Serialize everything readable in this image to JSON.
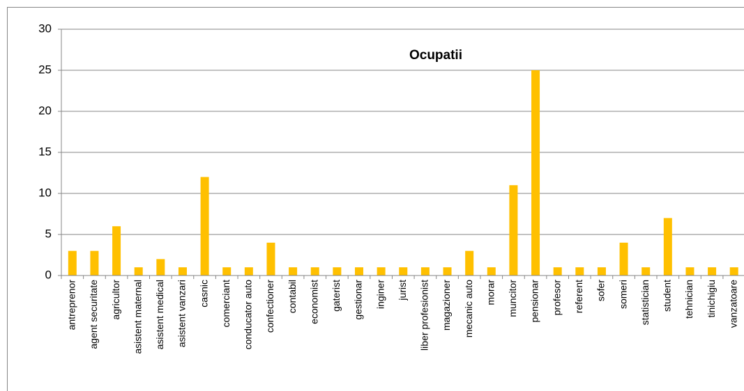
{
  "chart_data": {
    "type": "bar",
    "title": "Ocupatii",
    "categories": [
      "antreprenor",
      "agent securitate",
      "agricultor",
      "asistent maternal",
      "asistent medical",
      "asistent vanzari",
      "casnic",
      "comerciant",
      "conducator auto",
      "confectioner",
      "contabil",
      "economist",
      "gaterist",
      "gestionar",
      "inginer",
      "jurist",
      "liber profesionist",
      "magazioner",
      "mecanic auto",
      "morar",
      "muncitor",
      "pensionar",
      "profesor",
      "referent",
      "sofer",
      "someri",
      "statistician",
      "student",
      "tehnician",
      "tinichigiu",
      "vanzatoare"
    ],
    "values": [
      3,
      3,
      6,
      1,
      2,
      1,
      12,
      1,
      1,
      4,
      1,
      1,
      1,
      1,
      1,
      1,
      1,
      1,
      3,
      1,
      11,
      25,
      1,
      1,
      1,
      4,
      1,
      7,
      1,
      1,
      1
    ],
    "color": "#FFC000",
    "ylim": [
      0,
      30
    ],
    "yticks": [
      0,
      5,
      10,
      15,
      20,
      25,
      30
    ],
    "grid": true
  }
}
